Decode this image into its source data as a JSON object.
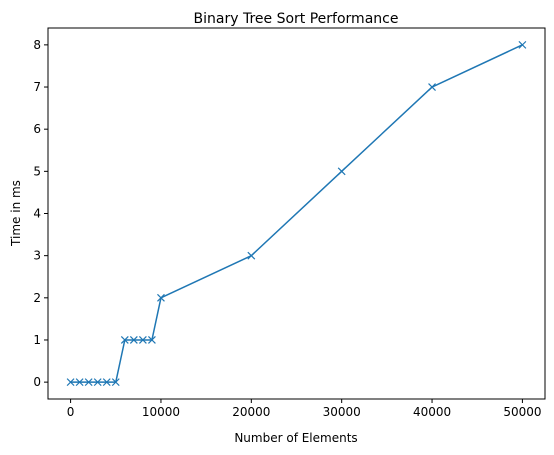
{
  "chart_data": {
    "type": "line",
    "title": "Binary Tree Sort Performance",
    "xlabel": "Number of Elements",
    "ylabel": "Time in ms",
    "xlim": [
      -2500,
      52500
    ],
    "ylim": [
      -0.4,
      8.4
    ],
    "xticks": [
      0,
      10000,
      20000,
      30000,
      40000,
      50000
    ],
    "xtick_labels": [
      "0",
      "10000",
      "20000",
      "30000",
      "40000",
      "50000"
    ],
    "yticks": [
      0,
      1,
      2,
      3,
      4,
      5,
      6,
      7,
      8
    ],
    "ytick_labels": [
      "0",
      "1",
      "2",
      "3",
      "4",
      "5",
      "6",
      "7",
      "8"
    ],
    "grid": false,
    "legend": "none",
    "series": [
      {
        "color": "#1f77b4",
        "marker": "x",
        "x": [
          0,
          1000,
          2000,
          3000,
          4000,
          5000,
          6000,
          7000,
          8000,
          9000,
          10000,
          20000,
          30000,
          40000,
          50000
        ],
        "y": [
          0,
          0,
          0,
          0,
          0,
          0,
          1,
          1,
          1,
          1,
          2,
          3,
          5,
          7,
          8
        ]
      }
    ]
  }
}
